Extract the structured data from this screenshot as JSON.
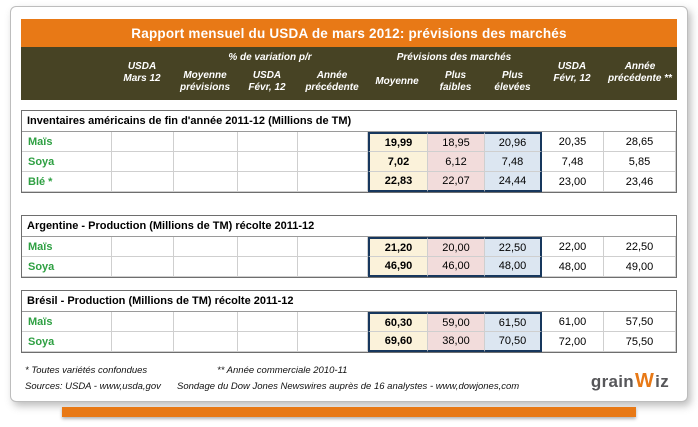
{
  "title": "Rapport mensuel du USDA de mars 2012: prévisions des marchés",
  "header": {
    "usda_mars": "USDA\nMars 12",
    "variation_group": "% de variation p/r",
    "moyenne_previsions": "Moyenne\nprévisions",
    "usda_fevr_var": "USDA\nFévr, 12",
    "annee_prec_var": "Année\nprécédente",
    "previsions_group": "Prévisions des marchés",
    "moyenne": "Moyenne",
    "plus_faibles": "Plus\nfaibles",
    "plus_elevees": "Plus\nélevées",
    "usda_fevr": "USDA\nFévr, 12",
    "annee_prec": "Année\nprécédente **"
  },
  "sections": [
    {
      "title": "Inventaires américains de fin d'année 2011-12 (Millions de TM)",
      "rows": [
        {
          "label": "Maïs",
          "values": [
            "19,99",
            "18,95",
            "20,96",
            "20,35",
            "28,65"
          ]
        },
        {
          "label": "Soya",
          "values": [
            "7,02",
            "6,12",
            "7,48",
            "7,48",
            "5,85"
          ]
        },
        {
          "label": "Blé *",
          "values": [
            "22,83",
            "22,07",
            "24,44",
            "23,00",
            "23,46"
          ]
        }
      ]
    },
    {
      "title": "Argentine - Production (Millions de TM) récolte 2011-12",
      "rows": [
        {
          "label": "Maïs",
          "values": [
            "21,20",
            "20,00",
            "22,50",
            "22,00",
            "22,50"
          ]
        },
        {
          "label": "Soya",
          "values": [
            "46,90",
            "46,00",
            "48,00",
            "48,00",
            "49,00"
          ]
        }
      ]
    },
    {
      "title": "Brésil - Production (Millions de TM) récolte 2011-12",
      "rows": [
        {
          "label": "Maïs",
          "values": [
            "60,30",
            "59,00",
            "61,50",
            "61,00",
            "57,50"
          ]
        },
        {
          "label": "Soya",
          "values": [
            "69,60",
            "38,00",
            "70,50",
            "72,00",
            "75,50"
          ]
        }
      ]
    }
  ],
  "footnotes": {
    "note1": "* Toutes variétés confondues",
    "note2": "** Année commerciale 2010-11",
    "sources": "Sources: USDA - www,usda,gov",
    "survey": "Sondage du Dow Jones Newswires auprès de 16 analystes - www,dowjones,com"
  },
  "logo": {
    "grain": "grain",
    "w": "W",
    "iz": "iz"
  },
  "colors": {
    "accent_orange": "#E87916",
    "header_olive": "#474324",
    "label_green": "#2FA043",
    "moyenne_bg": "#FBF2DA",
    "plus_faibles_bg": "#F2DCDB",
    "plus_elevees_bg": "#DCE6F1",
    "previsions_block_border": "#17375D"
  }
}
